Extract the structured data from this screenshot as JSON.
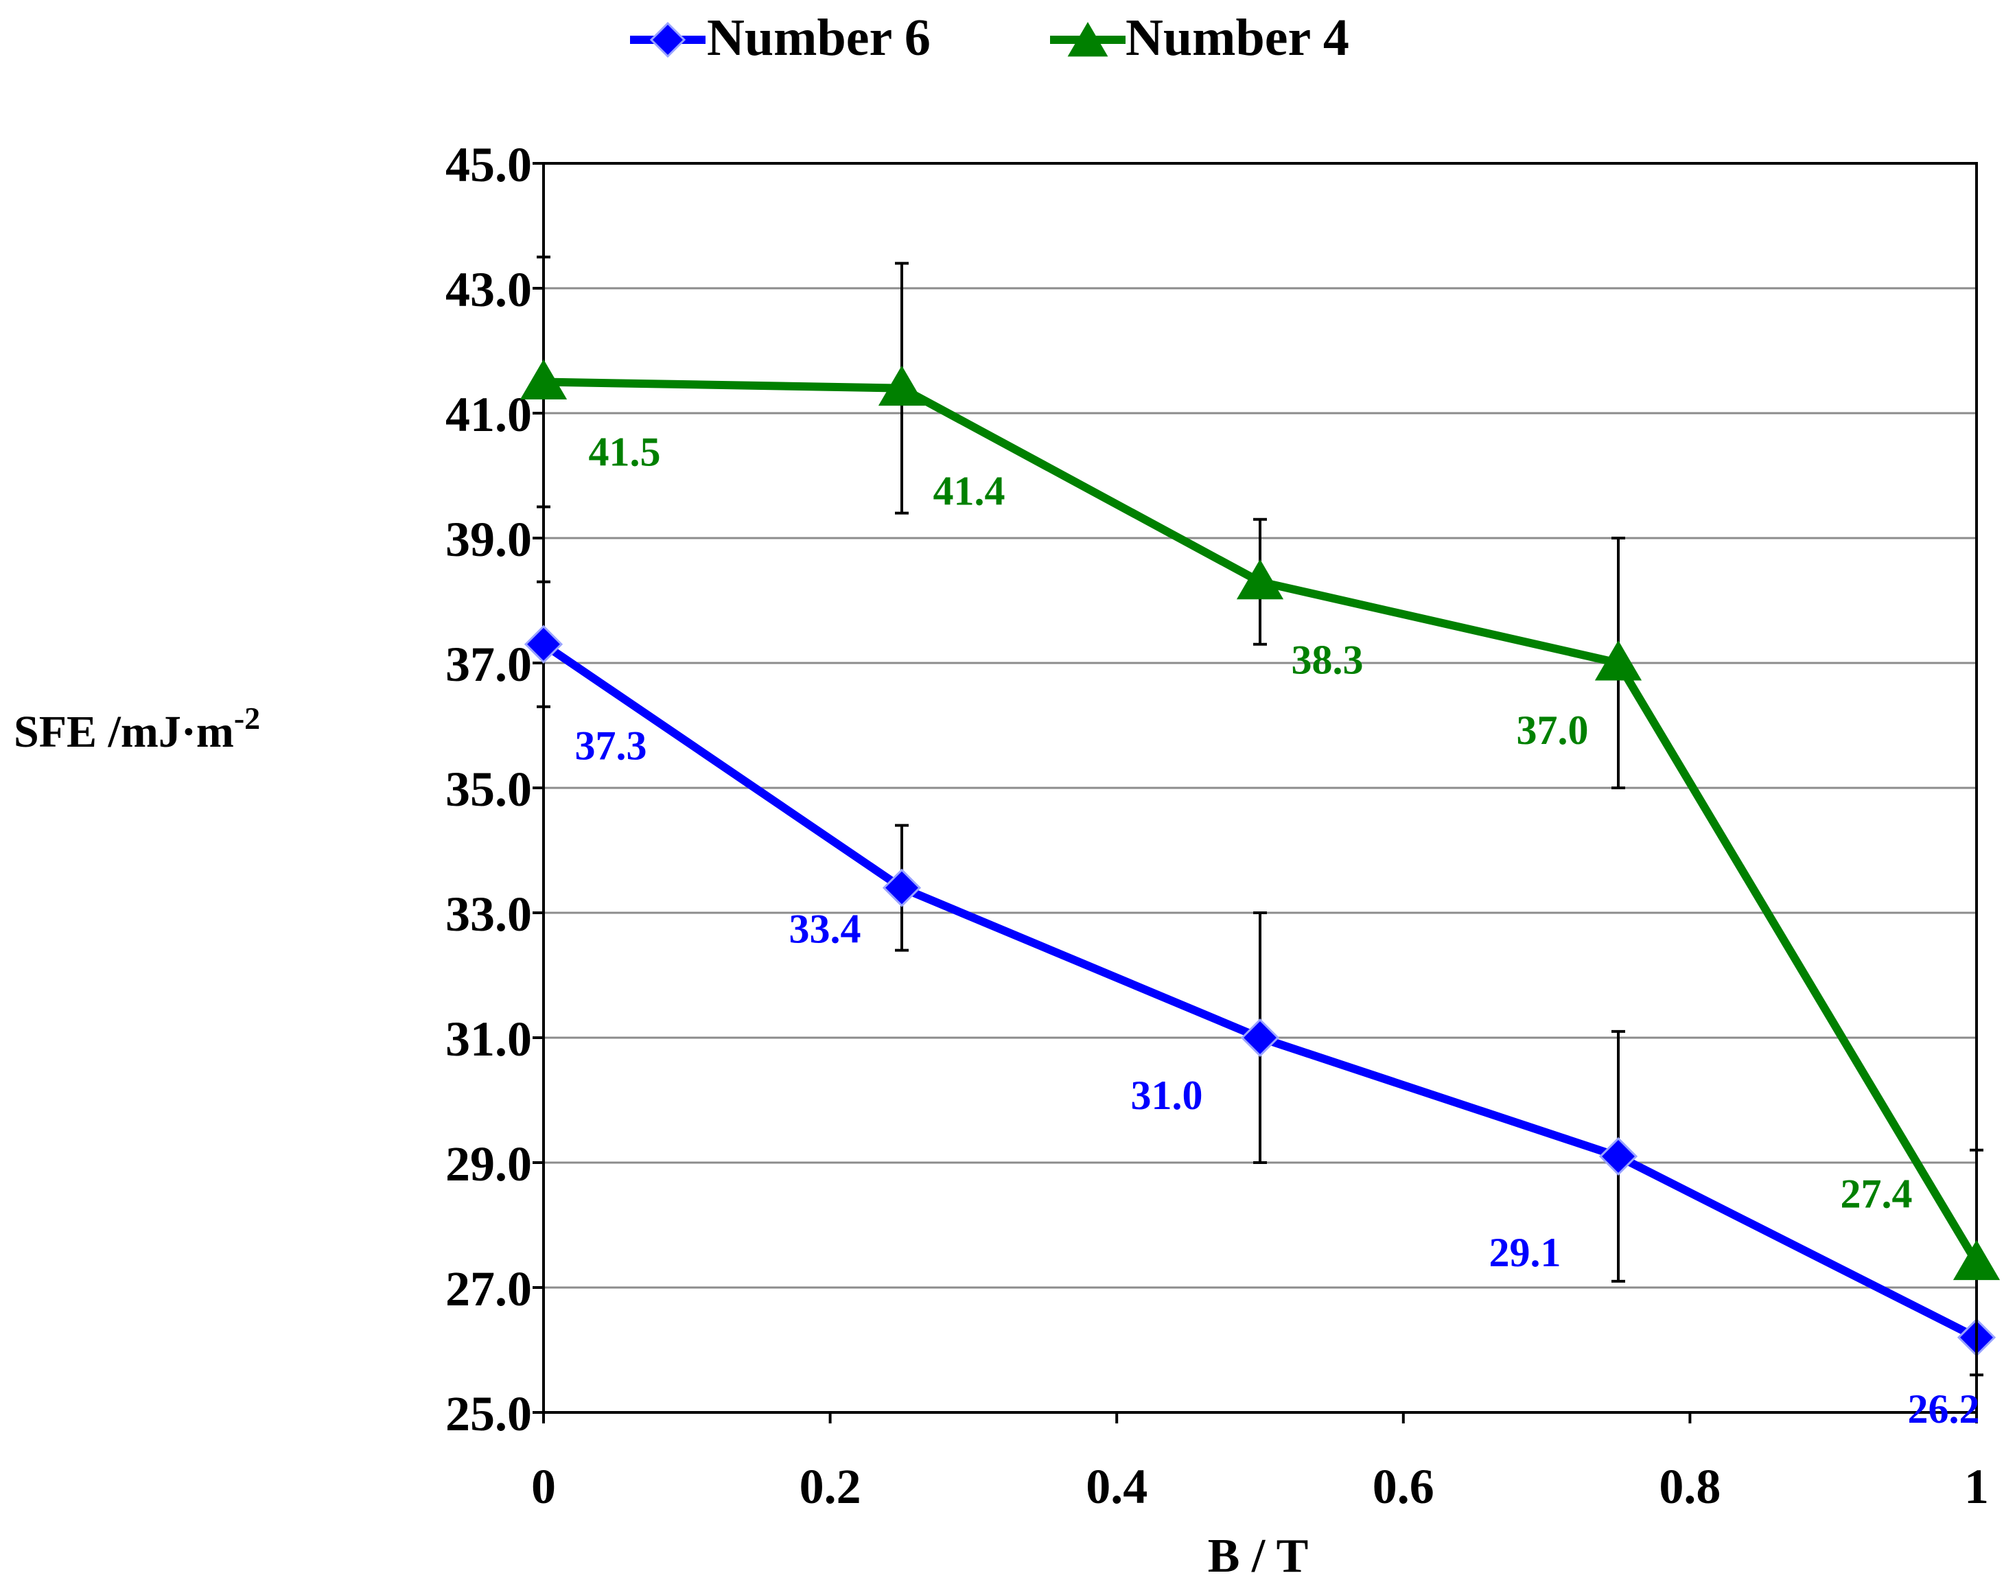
{
  "chart_data": {
    "type": "line",
    "title": "",
    "xlabel": "B / T",
    "ylabel": "SFE /mJ·m",
    "ylabel_superscript": "-2",
    "xlim": [
      0,
      1
    ],
    "ylim": [
      25,
      45
    ],
    "x_ticks": [
      0,
      0.2,
      0.4,
      0.6,
      0.8,
      1
    ],
    "x_tick_labels": [
      "0",
      "0.2",
      "0.4",
      "0.6",
      "0.8",
      "1"
    ],
    "y_ticks": [
      25,
      27,
      29,
      31,
      33,
      35,
      37,
      39,
      41,
      43,
      45
    ],
    "y_tick_labels": [
      "25.0",
      "27.0",
      "29.0",
      "31.0",
      "33.0",
      "35.0",
      "37.0",
      "39.0",
      "41.0",
      "43.0",
      "45.0"
    ],
    "grid": "horizontal",
    "legend_position": "top-center",
    "series": [
      {
        "name": "Number 6",
        "color": "#0000ff",
        "marker": "diamond",
        "x": [
          0,
          0.25,
          0.5,
          0.75,
          1
        ],
        "values": [
          37.3,
          33.4,
          31.0,
          29.1,
          26.2
        ],
        "error": [
          1.0,
          1.0,
          2.0,
          2.0,
          0
        ],
        "data_labels": [
          "37.3",
          "33.4",
          "31.0",
          "29.1",
          "26.2"
        ]
      },
      {
        "name": "Number 4",
        "color": "#008000",
        "marker": "triangle",
        "x": [
          0,
          0.25,
          0.5,
          0.75,
          1
        ],
        "values": [
          41.5,
          41.4,
          38.3,
          37.0,
          27.4
        ],
        "error": [
          2.0,
          2.0,
          1.0,
          2.0,
          1.8
        ],
        "data_labels": [
          "41.5",
          "41.4",
          "38.3",
          "37.0",
          "27.4"
        ]
      }
    ]
  }
}
